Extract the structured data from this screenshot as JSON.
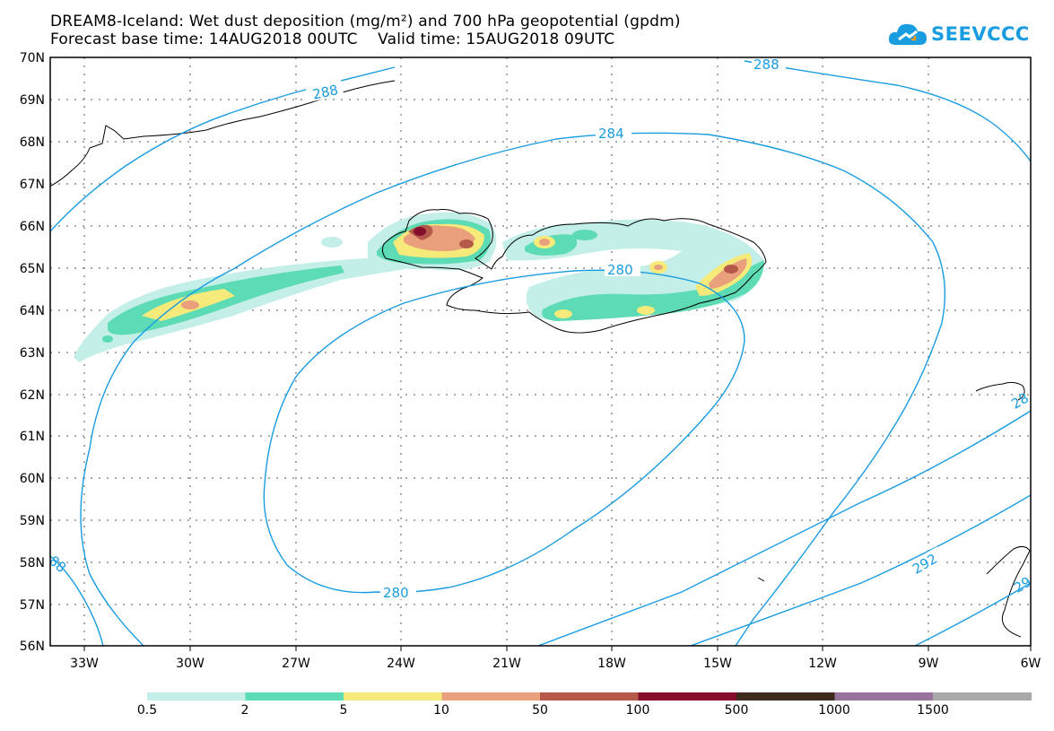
{
  "header": {
    "title_line1": "DREAM8-Iceland: Wet dust deposition (mg/m²) and 700 hPa geopotential (gpdm)",
    "title_line2": "Forecast base time: 14AUG2018 00UTC    Valid time: 15AUG2018 09UTC"
  },
  "logo": {
    "text": "SEEVCCC",
    "icon": "cloud-icon",
    "color": "#1a9ce0"
  },
  "axes": {
    "lat_labels": [
      "70N",
      "69N",
      "68N",
      "67N",
      "66N",
      "65N",
      "64N",
      "63N",
      "62N",
      "61N",
      "60N",
      "59N",
      "58N",
      "57N",
      "56N"
    ],
    "lon_labels": [
      "33W",
      "30W",
      "27W",
      "24W",
      "21W",
      "18W",
      "15W",
      "12W",
      "9W",
      "6W"
    ]
  },
  "contours": {
    "color": "#1a9ce0",
    "labels": [
      {
        "text": "288",
        "where": "top-left"
      },
      {
        "text": "288",
        "where": "top-right"
      },
      {
        "text": "284",
        "where": "north-of-iceland"
      },
      {
        "text": "280",
        "where": "inner-north"
      },
      {
        "text": "280",
        "where": "inner-south"
      },
      {
        "text": "292",
        "where": "southeast"
      },
      {
        "text": "28",
        "where": "east-edge"
      },
      {
        "text": "88",
        "where": "west-edge"
      },
      {
        "text": "29",
        "where": "southeast-edge"
      }
    ]
  },
  "legend": {
    "colors": [
      "#c3efe8",
      "#5ddbb4",
      "#f5ea7a",
      "#eba07d",
      "#b55a4a",
      "#840e2b",
      "#3d2a1d",
      "#98749c",
      "#a9a9a9"
    ],
    "labels": [
      "0.5",
      "2",
      "5",
      "10",
      "50",
      "100",
      "500",
      "1000",
      "1500"
    ]
  }
}
